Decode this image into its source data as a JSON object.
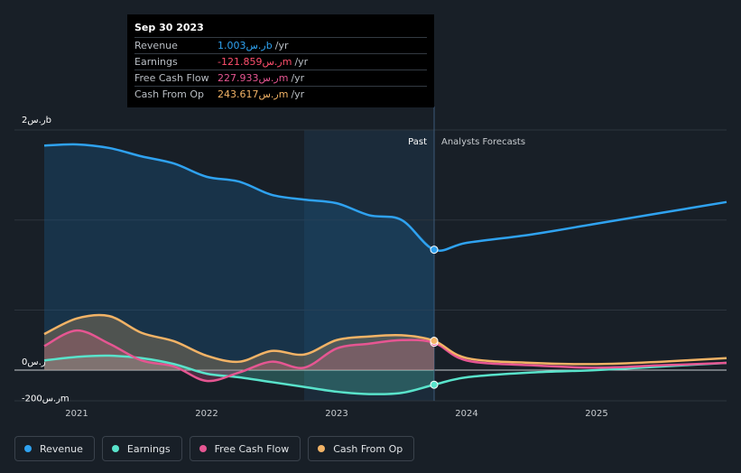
{
  "tooltip": {
    "date": "Sep 30 2023",
    "rows": [
      {
        "label": "Revenue",
        "value": "1.003ر.سb",
        "unit": "/yr",
        "color": "#2fa2f0"
      },
      {
        "label": "Earnings",
        "value": "-121.859ر.سm",
        "unit": "/yr",
        "color": "#ff4f6d"
      },
      {
        "label": "Free Cash Flow",
        "value": "227.933ر.سm",
        "unit": "/yr",
        "color": "#e65692"
      },
      {
        "label": "Cash From Op",
        "value": "243.617ر.سm",
        "unit": "/yr",
        "color": "#f2b366"
      }
    ]
  },
  "labels": {
    "past": "Past",
    "forecast": "Analysts Forecasts"
  },
  "chart_data": {
    "type": "line",
    "y_unit": "ر.سm",
    "ylim": [
      -200,
      2000
    ],
    "y_ticks": [
      {
        "value": 2000,
        "label": "2ر.سb"
      },
      {
        "value": 0,
        "label": "0ر.س"
      },
      {
        "value": -200,
        "label": "-200ر.سm"
      }
    ],
    "x_ticks": [
      {
        "value": 2021.0,
        "label": "2021"
      },
      {
        "value": 2022.0,
        "label": "2022"
      },
      {
        "value": 2023.0,
        "label": "2023"
      },
      {
        "value": 2024.0,
        "label": "2024"
      },
      {
        "value": 2025.0,
        "label": "2025"
      }
    ],
    "past_end": 2023.75,
    "series": [
      {
        "name": "Revenue",
        "color": "#2fa2f0",
        "x": [
          2020.75,
          2021.0,
          2021.25,
          2021.5,
          2021.75,
          2022.0,
          2022.25,
          2022.5,
          2022.75,
          2023.0,
          2023.25,
          2023.5,
          2023.75,
          2024.0,
          2024.5,
          2025.0,
          2025.5,
          2026.0
        ],
        "y": [
          1870,
          1880,
          1850,
          1780,
          1720,
          1610,
          1570,
          1460,
          1420,
          1390,
          1290,
          1250,
          1003,
          1060,
          1130,
          1220,
          1310,
          1400
        ]
      },
      {
        "name": "Earnings",
        "color": "#59e3cb",
        "x": [
          2020.75,
          2021.0,
          2021.25,
          2021.5,
          2021.75,
          2022.0,
          2022.25,
          2022.5,
          2022.75,
          2023.0,
          2023.25,
          2023.5,
          2023.75,
          2024.0,
          2024.5,
          2025.0,
          2025.5,
          2026.0
        ],
        "y": [
          80,
          110,
          120,
          100,
          50,
          -30,
          -60,
          -100,
          -140,
          -180,
          -200,
          -190,
          -122,
          -60,
          -20,
          0,
          30,
          60
        ]
      },
      {
        "name": "Free Cash Flow",
        "color": "#e65692",
        "x": [
          2020.75,
          2021.0,
          2021.25,
          2021.5,
          2021.75,
          2022.0,
          2022.25,
          2022.5,
          2022.75,
          2023.0,
          2023.25,
          2023.5,
          2023.75,
          2024.0,
          2024.5,
          2025.0,
          2025.5,
          2026.0
        ],
        "y": [
          200,
          330,
          220,
          80,
          30,
          -90,
          -20,
          70,
          20,
          180,
          220,
          250,
          228,
          80,
          40,
          20,
          40,
          60
        ]
      },
      {
        "name": "Cash From Op",
        "color": "#f2b366",
        "x": [
          2020.75,
          2021.0,
          2021.25,
          2021.5,
          2021.75,
          2022.0,
          2022.25,
          2022.5,
          2022.75,
          2023.0,
          2023.25,
          2023.5,
          2023.75,
          2024.0,
          2024.5,
          2025.0,
          2025.5,
          2026.0
        ],
        "y": [
          300,
          430,
          450,
          310,
          240,
          120,
          70,
          160,
          130,
          250,
          280,
          290,
          244,
          100,
          60,
          50,
          70,
          100
        ]
      }
    ]
  },
  "legend": [
    {
      "label": "Revenue",
      "color": "#2fa2f0"
    },
    {
      "label": "Earnings",
      "color": "#59e3cb"
    },
    {
      "label": "Free Cash Flow",
      "color": "#e65692"
    },
    {
      "label": "Cash From Op",
      "color": "#f2b366"
    }
  ]
}
